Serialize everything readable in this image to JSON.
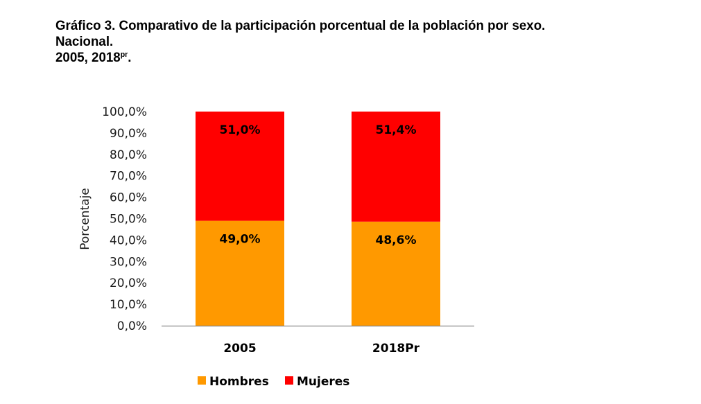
{
  "title": {
    "line1": "Gráfico 3. Comparativo de la participación porcentual de la población por sexo.",
    "line2": "Nacional.",
    "line3_main": "2005, 2018",
    "line3_sup": "pr",
    "line3_end": "."
  },
  "chart_data": {
    "type": "bar",
    "stacked": true,
    "percent_stacked": true,
    "title": "Gráfico 3. Comparativo de la participación porcentual de la población por sexo. Nacional. 2005, 2018pr.",
    "xlabel": "",
    "ylabel": "Porcentaje",
    "categories": [
      "2005",
      "2018Pr"
    ],
    "series": [
      {
        "name": "Hombres",
        "color": "#FF9900",
        "values": [
          49.0,
          48.6
        ],
        "labels": [
          "49,0%",
          "48,6%"
        ]
      },
      {
        "name": "Mujeres",
        "color": "#FF0000",
        "values": [
          51.0,
          51.4
        ],
        "labels": [
          "51,0%",
          "51,4%"
        ]
      }
    ],
    "ylim": [
      0,
      100
    ],
    "yticks": [
      0,
      10,
      20,
      30,
      40,
      50,
      60,
      70,
      80,
      90,
      100
    ],
    "ytick_labels": [
      "0,0%",
      "10,0%",
      "20,0%",
      "30,0%",
      "40,0%",
      "50,0%",
      "60,0%",
      "70,0%",
      "80,0%",
      "90,0%",
      "100,0%"
    ],
    "grid": false,
    "legend": {
      "position": "bottom",
      "entries": [
        "Hombres",
        "Mujeres"
      ]
    },
    "axis_color": "#888888"
  }
}
